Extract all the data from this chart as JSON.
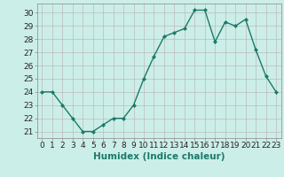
{
  "x": [
    0,
    1,
    2,
    3,
    4,
    5,
    6,
    7,
    8,
    9,
    10,
    11,
    12,
    13,
    14,
    15,
    16,
    17,
    18,
    19,
    20,
    21,
    22,
    23
  ],
  "y": [
    24.0,
    24.0,
    23.0,
    22.0,
    21.0,
    21.0,
    21.5,
    22.0,
    22.0,
    23.0,
    25.0,
    26.7,
    28.2,
    28.5,
    28.8,
    30.2,
    30.2,
    27.8,
    29.3,
    29.0,
    29.5,
    27.2,
    25.2,
    24.0
  ],
  "line_color": "#1a7a6a",
  "marker": "D",
  "marker_size": 2.0,
  "bg_color": "#cceee8",
  "grid_color": "#bbbbbb",
  "xlabel": "Humidex (Indice chaleur)",
  "ylim": [
    20.5,
    30.7
  ],
  "xlim": [
    -0.5,
    23.5
  ],
  "yticks": [
    21,
    22,
    23,
    24,
    25,
    26,
    27,
    28,
    29,
    30
  ],
  "xticks": [
    0,
    1,
    2,
    3,
    4,
    5,
    6,
    7,
    8,
    9,
    10,
    11,
    12,
    13,
    14,
    15,
    16,
    17,
    18,
    19,
    20,
    21,
    22,
    23
  ],
  "xlabel_fontsize": 7.5,
  "tick_fontsize": 6.5,
  "line_width": 1.0
}
